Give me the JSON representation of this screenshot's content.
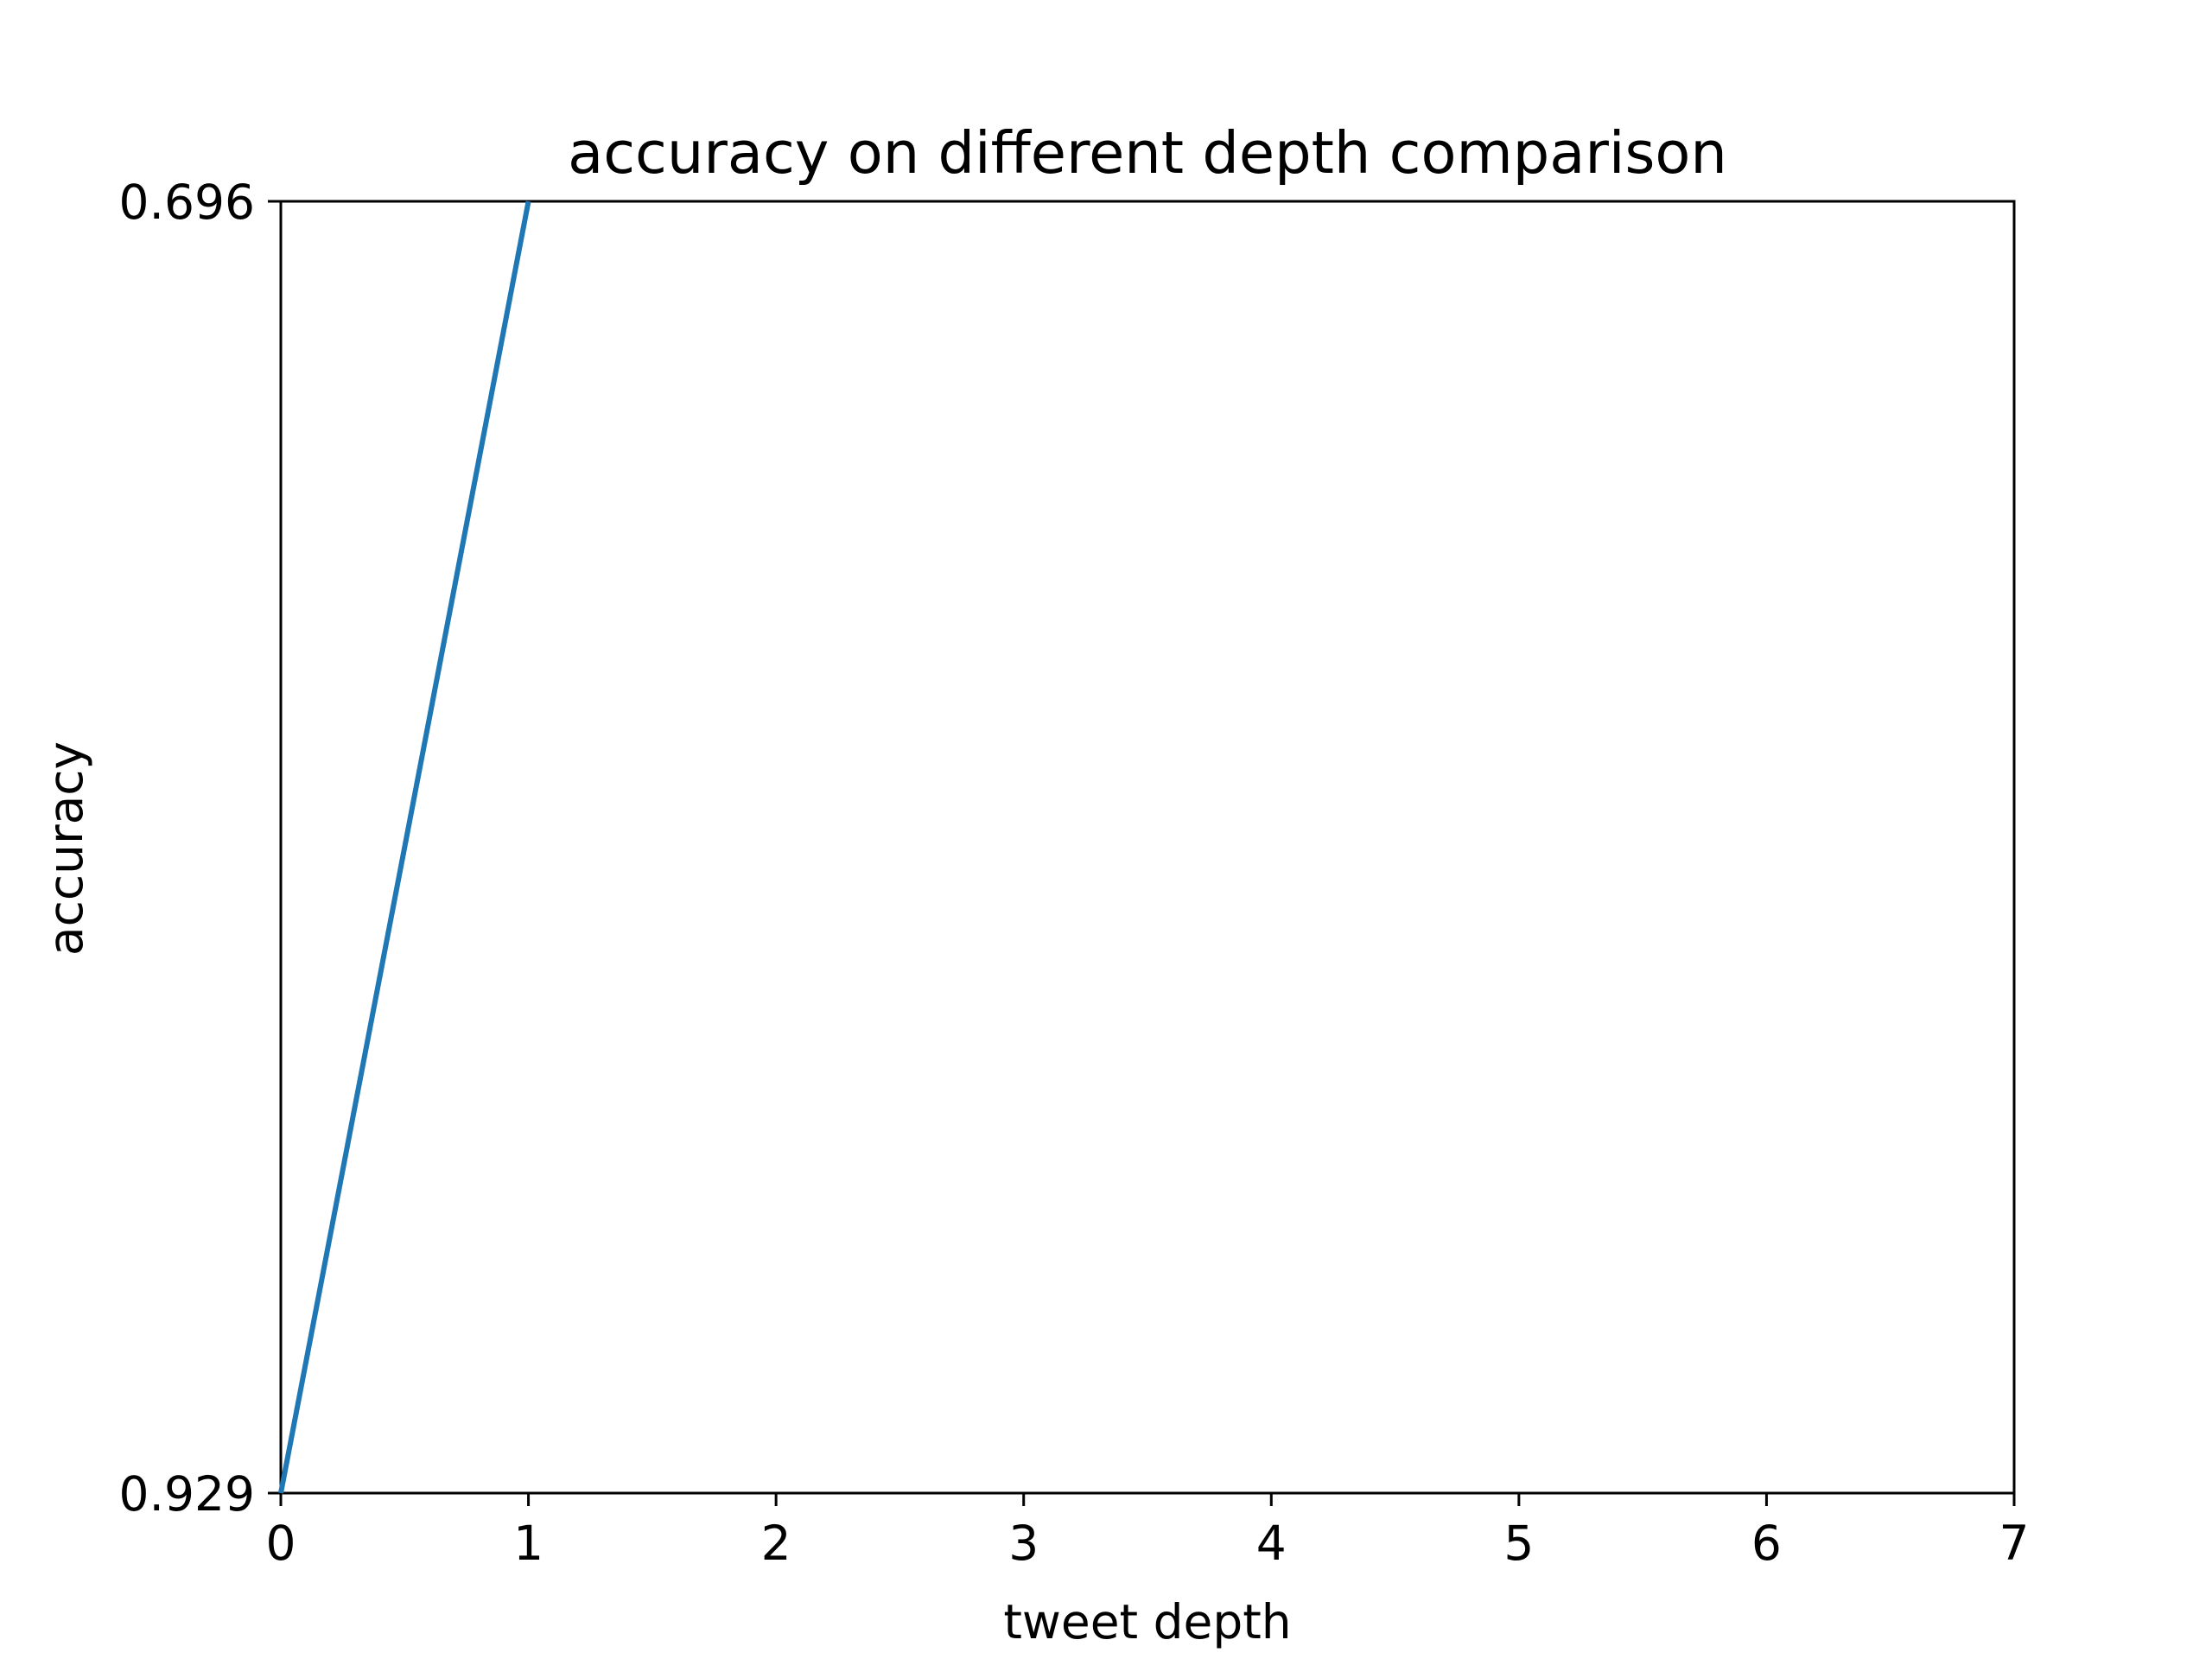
{
  "chart_data": {
    "type": "line",
    "title": "accuracy on different depth comparison",
    "xlabel": "tweet depth",
    "ylabel": "accuracy",
    "xlim": [
      0,
      7
    ],
    "ylim": [
      0.929,
      0.696
    ],
    "y_axis_inverted": true,
    "grid": false,
    "legend": "none",
    "x_ticks": [
      "0",
      "1",
      "2",
      "3",
      "4",
      "5",
      "6",
      "7"
    ],
    "y_ticks": [
      "0.929",
      "0.696"
    ],
    "series": [
      {
        "x": [
          0,
          1
        ],
        "y": [
          0.929,
          0.696
        ],
        "color": "#1f77b4"
      }
    ]
  }
}
